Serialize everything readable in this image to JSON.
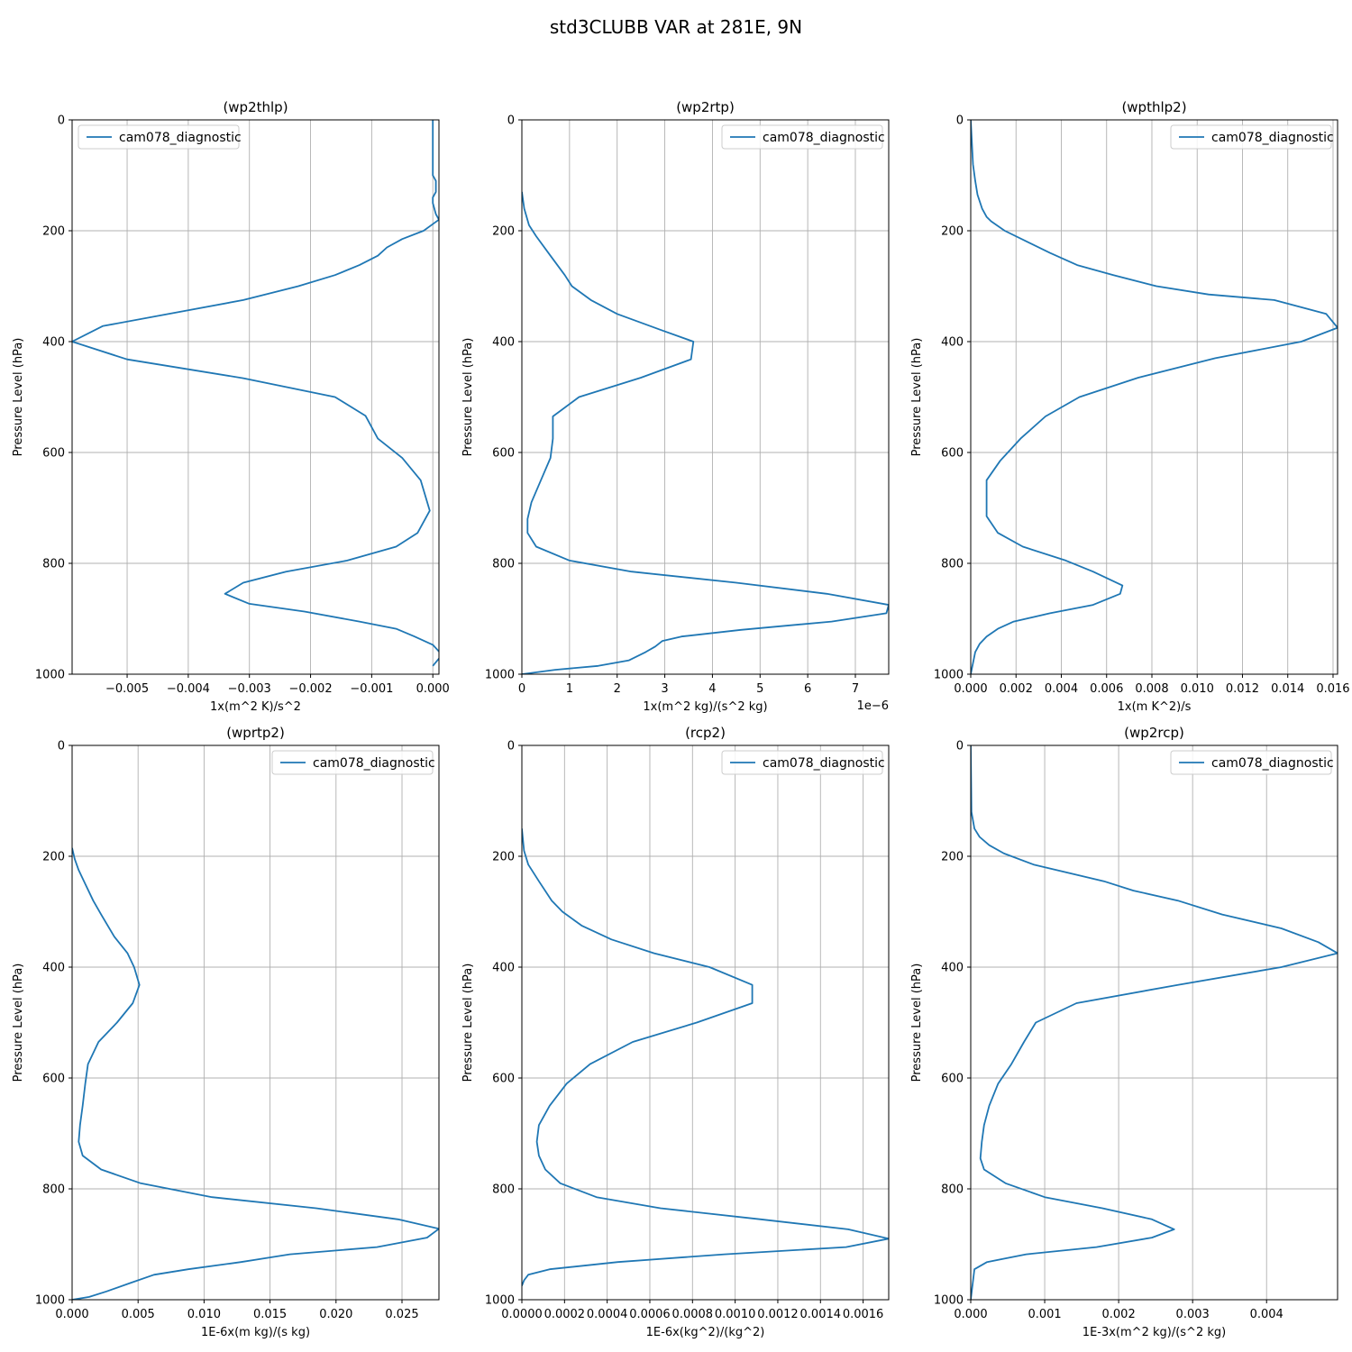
{
  "figure": {
    "title": "std3CLUBB VAR at 281E, 9N",
    "legend_color": "#1f77b4"
  },
  "chart_data": [
    {
      "type": "line",
      "title": "(wp2thlp)",
      "xlabel": "1x(m^2 K)/s^2",
      "ylabel": "Pressure Level (hPa)",
      "xlim": [
        -0.0059,
        0.0001
      ],
      "ylim": [
        1000,
        0
      ],
      "xticks": [
        -0.005,
        -0.004,
        -0.003,
        -0.002,
        -0.001,
        0.0
      ],
      "xtick_labels": [
        "−0.005",
        "−0.004",
        "−0.003",
        "−0.002",
        "−0.001",
        "0.000"
      ],
      "yticks": [
        0,
        200,
        400,
        600,
        800,
        1000
      ],
      "ytick_labels": [
        "0",
        "200",
        "400",
        "600",
        "800",
        "1000"
      ],
      "offset_label": "",
      "grid": true,
      "legend_loc": "upper left",
      "series": [
        {
          "name": "cam078_diagnostic",
          "x": [
            0.0,
            0.0,
            0.0,
            5e-05,
            5e-05,
            0.0,
            0.0,
            5e-05,
            0.0001,
            -0.00015,
            -0.0005,
            -0.00075,
            -0.0009,
            -0.0012,
            -0.0016,
            -0.0022,
            -0.0031,
            -0.0054,
            -0.0059,
            -0.005,
            -0.0031,
            -0.0016,
            -0.0011,
            -0.0009,
            -0.0005,
            -0.0002,
            -5e-05,
            -0.00025,
            -0.0006,
            -0.0014,
            -0.0024,
            -0.0031,
            -0.0034,
            -0.003,
            -0.0021,
            -0.0012,
            -0.0006,
            -0.0003,
            0.0,
            0.00015,
            0.0
          ],
          "y": [
            0,
            60,
            100,
            110,
            130,
            140,
            150,
            170,
            180,
            200,
            215,
            230,
            245,
            262,
            280,
            300,
            325,
            372,
            400,
            432,
            466,
            500,
            534,
            575,
            610,
            650,
            705,
            745,
            770,
            795,
            815,
            835,
            855,
            873,
            887,
            905,
            918,
            932,
            947,
            965,
            985
          ]
        }
      ]
    },
    {
      "type": "line",
      "title": "(wp2rtp)",
      "xlabel": "1x(m^2 kg)/(s^2 kg)",
      "ylabel": "Pressure Level (hPa)",
      "xlim": [
        0,
        7.7
      ],
      "ylim": [
        1000,
        0
      ],
      "xticks": [
        0,
        1,
        2,
        3,
        4,
        5,
        6,
        7
      ],
      "xtick_labels": [
        "0",
        "1",
        "2",
        "3",
        "4",
        "5",
        "6",
        "7"
      ],
      "yticks": [
        0,
        200,
        400,
        600,
        800,
        1000
      ],
      "ytick_labels": [
        "0",
        "200",
        "400",
        "600",
        "800",
        "1000"
      ],
      "offset_label": "1e−6",
      "grid": true,
      "legend_loc": "upper right",
      "series": [
        {
          "name": "cam078_diagnostic",
          "x": [
            0.0,
            0.05,
            0.15,
            0.3,
            0.6,
            0.9,
            1.05,
            1.45,
            2.0,
            2.95,
            3.6,
            3.55,
            2.5,
            1.2,
            0.65,
            0.65,
            0.6,
            0.4,
            0.2,
            0.12,
            0.12,
            0.3,
            1.0,
            2.3,
            4.5,
            6.4,
            7.7,
            7.65,
            6.5,
            4.6,
            3.35,
            2.95,
            2.8,
            2.6,
            2.25,
            1.6,
            0.7,
            0.0
          ],
          "y": [
            130,
            160,
            190,
            210,
            245,
            280,
            300,
            325,
            350,
            380,
            400,
            432,
            465,
            500,
            535,
            575,
            610,
            650,
            690,
            720,
            745,
            770,
            795,
            815,
            835,
            855,
            875,
            890,
            905,
            920,
            932,
            940,
            950,
            960,
            975,
            985,
            992,
            1000
          ]
        }
      ]
    },
    {
      "type": "line",
      "title": "(wpthlp2)",
      "xlabel": "1x(m K^2)/s",
      "ylabel": "Pressure Level (hPa)",
      "xlim": [
        0,
        0.0162
      ],
      "ylim": [
        1000,
        0
      ],
      "xticks": [
        0.0,
        0.002,
        0.004,
        0.006,
        0.008,
        0.01,
        0.012,
        0.014,
        0.016
      ],
      "xtick_labels": [
        "0.000",
        "0.002",
        "0.004",
        "0.006",
        "0.008",
        "0.010",
        "0.012",
        "0.014",
        "0.016"
      ],
      "yticks": [
        0,
        200,
        400,
        600,
        800,
        1000
      ],
      "ytick_labels": [
        "0",
        "200",
        "400",
        "600",
        "800",
        "1000"
      ],
      "offset_label": "",
      "grid": true,
      "legend_loc": "upper right",
      "series": [
        {
          "name": "cam078_diagnostic",
          "x": [
            0.0,
            0.0001,
            0.0002,
            0.0003,
            0.0005,
            0.0007,
            0.0009,
            0.0015,
            0.0025,
            0.0035,
            0.0047,
            0.0063,
            0.0082,
            0.0105,
            0.0134,
            0.0157,
            0.0162,
            0.0146,
            0.0108,
            0.0074,
            0.0048,
            0.0033,
            0.0022,
            0.0013,
            0.0007,
            0.0007,
            0.0007,
            0.0012,
            0.0023,
            0.0042,
            0.0054,
            0.0067,
            0.0066,
            0.0054,
            0.0035,
            0.0019,
            0.0012,
            0.0007,
            0.0004,
            0.0002,
            0.0001,
            0.0
          ],
          "y": [
            0,
            80,
            110,
            135,
            160,
            175,
            183,
            200,
            220,
            240,
            262,
            280,
            300,
            315,
            325,
            350,
            375,
            400,
            430,
            465,
            500,
            535,
            575,
            615,
            650,
            685,
            715,
            745,
            770,
            795,
            815,
            840,
            855,
            875,
            890,
            905,
            918,
            932,
            945,
            960,
            980,
            1000
          ]
        }
      ]
    },
    {
      "type": "line",
      "title": "(wprtp2)",
      "xlabel": "1E-6x(m kg)/(s kg)",
      "ylabel": "Pressure Level (hPa)",
      "xlim": [
        0,
        0.0278
      ],
      "ylim": [
        1000,
        0
      ],
      "xticks": [
        0.0,
        0.005,
        0.01,
        0.015,
        0.02,
        0.025
      ],
      "xtick_labels": [
        "0.000",
        "0.005",
        "0.010",
        "0.015",
        "0.020",
        "0.025"
      ],
      "yticks": [
        0,
        200,
        400,
        600,
        800,
        1000
      ],
      "ytick_labels": [
        "0",
        "200",
        "400",
        "600",
        "800",
        "1000"
      ],
      "offset_label": "",
      "grid": true,
      "legend_loc": "upper right",
      "series": [
        {
          "name": "cam078_diagnostic",
          "x": [
            0.0,
            0.0002,
            0.0005,
            0.001,
            0.0016,
            0.0022,
            0.0032,
            0.0042,
            0.0047,
            0.0051,
            0.0046,
            0.0034,
            0.002,
            0.0012,
            0.001,
            0.0008,
            0.0006,
            0.0005,
            0.0008,
            0.0022,
            0.0052,
            0.0106,
            0.0185,
            0.0247,
            0.0278,
            0.0269,
            0.0231,
            0.0165,
            0.0128,
            0.0088,
            0.0062,
            0.0044,
            0.0026,
            0.0013,
            0.0
          ],
          "y": [
            185,
            205,
            225,
            250,
            280,
            305,
            345,
            375,
            400,
            432,
            465,
            500,
            535,
            575,
            610,
            650,
            685,
            715,
            740,
            765,
            790,
            815,
            835,
            855,
            872,
            888,
            905,
            918,
            932,
            945,
            955,
            970,
            985,
            995,
            1000
          ]
        }
      ]
    },
    {
      "type": "line",
      "title": "(rcp2)",
      "xlabel": "1E-6x(kg^2)/(kg^2)",
      "ylabel": "Pressure Level (hPa)",
      "xlim": [
        0,
        0.00172
      ],
      "ylim": [
        1000,
        0
      ],
      "xticks": [
        0.0,
        0.0002,
        0.0004,
        0.0006,
        0.0008,
        0.001,
        0.0012,
        0.0014,
        0.0016
      ],
      "xtick_labels": [
        "0.0000",
        "0.0002",
        "0.0004",
        "0.0006",
        "0.0008",
        "0.0010",
        "0.0012",
        "0.0014",
        "0.0016"
      ],
      "yticks": [
        0,
        200,
        400,
        600,
        800,
        1000
      ],
      "ytick_labels": [
        "0",
        "200",
        "400",
        "600",
        "800",
        "1000"
      ],
      "offset_label": "",
      "grid": true,
      "legend_loc": "upper right",
      "series": [
        {
          "name": "cam078_diagnostic",
          "x": [
            0.0,
            1e-05,
            3e-05,
            8e-05,
            0.00014,
            0.00019,
            0.00028,
            0.00042,
            0.00062,
            0.00088,
            0.00108,
            0.00108,
            0.00082,
            0.00052,
            0.00032,
            0.00021,
            0.00013,
            8e-05,
            7e-05,
            8e-05,
            0.00011,
            0.00018,
            0.00035,
            0.00065,
            0.00112,
            0.00153,
            0.00172,
            0.00152,
            0.00095,
            0.00045,
            0.00013,
            3e-05,
            1e-05,
            0.0
          ],
          "y": [
            150,
            190,
            215,
            245,
            280,
            300,
            325,
            350,
            375,
            400,
            432,
            465,
            500,
            535,
            575,
            610,
            650,
            685,
            715,
            740,
            765,
            790,
            815,
            835,
            855,
            873,
            890,
            905,
            918,
            932,
            945,
            955,
            965,
            975
          ]
        }
      ]
    },
    {
      "type": "line",
      "title": "(wp2rcp)",
      "xlabel": "1E-3x(m^2 kg)/(s^2 kg)",
      "ylabel": "Pressure Level (hPa)",
      "xlim": [
        0,
        0.00496
      ],
      "ylim": [
        1000,
        0
      ],
      "xticks": [
        0.0,
        0.001,
        0.002,
        0.003,
        0.004
      ],
      "xtick_labels": [
        "0.000",
        "0.001",
        "0.002",
        "0.003",
        "0.004"
      ],
      "yticks": [
        0,
        200,
        400,
        600,
        800,
        1000
      ],
      "ytick_labels": [
        "0",
        "200",
        "400",
        "600",
        "800",
        "1000"
      ],
      "offset_label": "",
      "grid": true,
      "legend_loc": "upper right",
      "series": [
        {
          "name": "cam078_diagnostic",
          "x": [
            0.0,
            1e-05,
            5e-05,
            0.00012,
            0.00025,
            0.00045,
            0.00085,
            0.00148,
            0.0018,
            0.0022,
            0.0028,
            0.0034,
            0.0042,
            0.0047,
            0.00496,
            0.0042,
            0.0028,
            0.00143,
            0.00088,
            0.00072,
            0.00055,
            0.00037,
            0.00025,
            0.00018,
            0.00015,
            0.00013,
            0.00018,
            0.00047,
            0.001,
            0.00178,
            0.00245,
            0.00275,
            0.00245,
            0.0017,
            0.00075,
            0.00022,
            5e-05,
            0.0
          ],
          "y": [
            0,
            120,
            150,
            165,
            180,
            195,
            215,
            235,
            245,
            262,
            280,
            305,
            330,
            355,
            375,
            400,
            432,
            465,
            500,
            535,
            575,
            610,
            650,
            685,
            715,
            745,
            765,
            790,
            815,
            835,
            855,
            873,
            888,
            905,
            918,
            932,
            945,
            1000
          ]
        }
      ]
    }
  ]
}
